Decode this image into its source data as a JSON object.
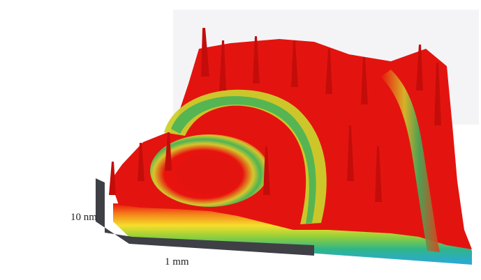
{
  "scale_bars": {
    "height_label": "10 nm",
    "width_label": "1 mm"
  },
  "colors": {
    "scale_bar": "#3f4046",
    "peak": "#e8120e",
    "high": "#f2a21a",
    "mid": "#c9d12a",
    "low": "#3bb05a",
    "base": "#25b8d8"
  }
}
